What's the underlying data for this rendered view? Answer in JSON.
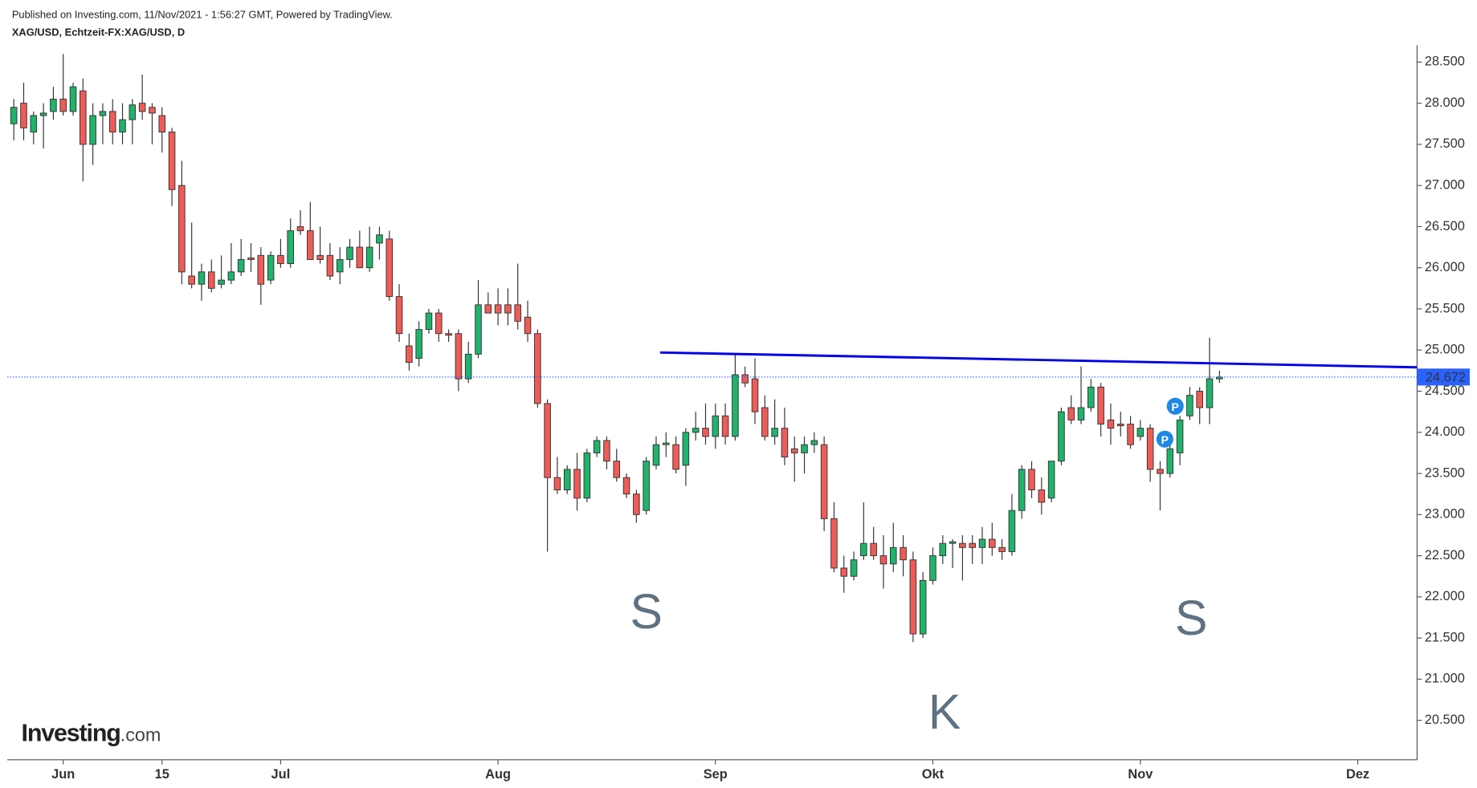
{
  "header": {
    "published": "Published on Investing.com, 11/Nov/2021 - 1:56:27 GMT, Powered by TradingView.",
    "symbol": "XAG/USD, Echtzeit-FX:XAG/USD, D"
  },
  "logo": {
    "name": "Investing",
    "suffix": ".com"
  },
  "chart_data": {
    "type": "candlestick",
    "up_color": "#1fb36b",
    "down_color": "#ef5b57",
    "border_color": "#333333",
    "open": [
      27.75,
      28.0,
      27.65,
      27.85,
      27.9,
      28.05,
      27.9,
      28.15,
      27.5,
      27.85,
      27.9,
      27.65,
      27.8,
      28.0,
      27.95,
      27.85,
      27.65,
      27.0,
      25.9,
      25.8,
      25.95,
      25.8,
      25.85,
      25.95,
      26.12,
      26.15,
      25.85,
      26.15,
      26.05,
      26.5,
      26.45,
      26.15,
      26.15,
      25.95,
      26.1,
      26.25,
      26.0,
      26.3,
      26.35,
      25.65,
      25.05,
      24.9,
      25.25,
      25.45,
      25.2,
      25.2,
      24.65,
      24.95,
      25.55,
      25.55,
      25.55,
      25.55,
      25.4,
      25.2,
      24.35,
      23.45,
      23.3,
      23.55,
      23.2,
      23.75,
      23.9,
      23.65,
      23.45,
      23.25,
      23.05,
      23.6,
      23.85,
      23.85,
      23.6,
      24.0,
      24.05,
      23.95,
      24.2,
      23.95,
      24.7,
      24.65,
      24.3,
      23.95,
      24.05,
      23.8,
      23.75,
      23.85,
      23.85,
      22.95,
      22.35,
      22.25,
      22.5,
      22.65,
      22.5,
      22.4,
      22.6,
      22.45,
      21.55,
      22.2,
      22.5,
      22.65,
      22.65,
      22.65,
      22.6,
      22.7,
      22.6,
      22.55,
      23.05,
      23.55,
      23.3,
      23.2,
      23.65,
      24.3,
      24.15,
      24.3,
      24.55,
      24.15,
      24.1,
      24.1,
      23.95,
      24.05,
      23.55,
      23.5,
      23.75,
      24.2,
      24.5,
      24.3,
      24.65
    ],
    "high": [
      28.05,
      28.25,
      27.9,
      28.0,
      28.2,
      28.6,
      28.25,
      28.3,
      28.0,
      28.0,
      28.05,
      28.0,
      28.05,
      28.35,
      28.0,
      27.95,
      27.7,
      27.3,
      26.55,
      26.05,
      26.1,
      26.15,
      26.3,
      26.35,
      26.3,
      26.25,
      26.2,
      26.35,
      26.6,
      26.7,
      26.8,
      26.5,
      26.3,
      26.25,
      26.35,
      26.45,
      26.5,
      26.5,
      26.45,
      25.8,
      25.2,
      25.35,
      25.5,
      25.5,
      25.25,
      25.25,
      25.1,
      25.85,
      25.7,
      25.75,
      25.75,
      26.05,
      25.6,
      25.25,
      24.4,
      23.7,
      23.6,
      23.75,
      23.8,
      23.95,
      23.95,
      23.8,
      23.5,
      23.3,
      23.7,
      23.95,
      24.0,
      23.95,
      24.05,
      24.25,
      24.35,
      24.35,
      24.35,
      24.95,
      24.8,
      24.9,
      24.45,
      24.4,
      24.3,
      23.95,
      23.95,
      24.0,
      23.95,
      23.15,
      22.5,
      22.55,
      23.15,
      22.85,
      22.75,
      22.9,
      22.75,
      22.55,
      22.3,
      22.6,
      22.75,
      22.7,
      22.75,
      22.75,
      22.85,
      22.9,
      22.7,
      23.25,
      23.6,
      23.65,
      23.45,
      23.65,
      24.3,
      24.45,
      24.8,
      24.65,
      24.6,
      24.35,
      24.25,
      24.2,
      24.15,
      24.1,
      23.65,
      23.95,
      24.2,
      24.55,
      24.55,
      25.15,
      24.75
    ],
    "low": [
      27.55,
      27.55,
      27.5,
      27.45,
      27.8,
      27.85,
      27.85,
      27.05,
      27.25,
      27.5,
      27.5,
      27.5,
      27.5,
      27.8,
      27.5,
      27.4,
      26.75,
      25.8,
      25.75,
      25.6,
      25.7,
      25.75,
      25.8,
      25.9,
      25.95,
      25.55,
      25.8,
      26.0,
      26.0,
      26.4,
      26.1,
      26.05,
      25.85,
      25.8,
      26.0,
      26.0,
      25.95,
      26.1,
      25.6,
      25.1,
      24.75,
      24.8,
      25.2,
      25.1,
      25.1,
      24.5,
      24.6,
      24.9,
      25.45,
      25.3,
      25.3,
      25.25,
      25.1,
      24.3,
      22.55,
      23.25,
      23.25,
      23.05,
      23.15,
      23.7,
      23.55,
      23.4,
      23.2,
      22.9,
      23.0,
      23.55,
      23.7,
      23.5,
      23.35,
      23.9,
      23.85,
      23.8,
      23.85,
      23.9,
      24.55,
      24.1,
      23.9,
      23.85,
      23.6,
      23.4,
      23.5,
      23.75,
      22.8,
      22.3,
      22.05,
      22.2,
      22.45,
      22.45,
      22.1,
      22.3,
      22.25,
      21.45,
      21.5,
      22.15,
      22.4,
      22.35,
      22.2,
      22.4,
      22.4,
      22.5,
      22.45,
      22.5,
      22.95,
      23.2,
      23.0,
      23.15,
      23.6,
      24.1,
      24.1,
      24.25,
      23.95,
      23.85,
      23.95,
      23.8,
      23.9,
      23.4,
      23.05,
      23.45,
      23.6,
      24.15,
      24.1,
      24.1,
      24.6
    ],
    "close": [
      27.95,
      27.7,
      27.85,
      27.88,
      28.05,
      27.9,
      28.2,
      27.5,
      27.85,
      27.9,
      27.65,
      27.8,
      27.98,
      27.9,
      27.88,
      27.65,
      26.95,
      25.95,
      25.8,
      25.95,
      25.75,
      25.85,
      25.95,
      26.1,
      26.1,
      25.8,
      26.15,
      26.05,
      26.45,
      26.45,
      26.1,
      26.1,
      25.9,
      26.1,
      26.25,
      26.0,
      26.25,
      26.4,
      25.65,
      25.2,
      24.85,
      25.25,
      25.45,
      25.2,
      25.18,
      24.65,
      24.95,
      25.55,
      25.45,
      25.45,
      25.45,
      25.35,
      25.2,
      24.35,
      23.45,
      23.3,
      23.55,
      23.2,
      23.75,
      23.9,
      23.65,
      23.45,
      23.25,
      23.0,
      23.65,
      23.85,
      23.87,
      23.55,
      24.0,
      24.05,
      23.95,
      24.2,
      23.95,
      24.7,
      24.6,
      24.25,
      23.95,
      24.05,
      23.7,
      23.75,
      23.85,
      23.9,
      22.95,
      22.35,
      22.25,
      22.45,
      22.65,
      22.5,
      22.4,
      22.6,
      22.45,
      21.55,
      22.2,
      22.5,
      22.65,
      22.67,
      22.6,
      22.6,
      22.7,
      22.6,
      22.55,
      23.05,
      23.55,
      23.3,
      23.15,
      23.65,
      24.25,
      24.15,
      24.3,
      24.55,
      24.1,
      24.05,
      24.08,
      23.85,
      24.05,
      23.55,
      23.5,
      23.8,
      24.15,
      24.45,
      24.3,
      24.65,
      24.672
    ],
    "xlim": [
      -0.667,
      142.0
    ],
    "xticks": [
      {
        "value": 5,
        "label": "Jun"
      },
      {
        "value": 15,
        "label": "15"
      },
      {
        "value": 27,
        "label": "Jul"
      },
      {
        "value": 49,
        "label": "Aug"
      },
      {
        "value": 71,
        "label": "Sep"
      },
      {
        "value": 93,
        "label": "Okt"
      },
      {
        "value": 114,
        "label": "Nov"
      },
      {
        "value": 136,
        "label": "Dez"
      }
    ],
    "ylim": [
      20.02,
      28.706
    ],
    "yticks": [
      {
        "value": 20.5,
        "label": "20.500"
      },
      {
        "value": 21,
        "label": "21.000"
      },
      {
        "value": 21.5,
        "label": "21.500"
      },
      {
        "value": 22,
        "label": "22.000"
      },
      {
        "value": 22.5,
        "label": "22.500"
      },
      {
        "value": 23,
        "label": "23.000"
      },
      {
        "value": 23.5,
        "label": "23.500"
      },
      {
        "value": 24,
        "label": "24.000"
      },
      {
        "value": 24.5,
        "label": "24.500"
      },
      {
        "value": 25,
        "label": "25.000"
      },
      {
        "value": 25.5,
        "label": "25.500"
      },
      {
        "value": 26,
        "label": "26.000"
      },
      {
        "value": 26.5,
        "label": "26.500"
      },
      {
        "value": 27,
        "label": "27.000"
      },
      {
        "value": 27.5,
        "label": "27.500"
      },
      {
        "value": 28,
        "label": "28.000"
      },
      {
        "value": 28.5,
        "label": "28.500"
      }
    ],
    "last_price": 24.672,
    "last_price_color": "#2962ff",
    "trend_line": {
      "x": [
        65.4,
        142.0
      ],
      "y": [
        24.97,
        24.79
      ],
      "color": "#0000e6"
    },
    "annotations": [
      "S",
      "K",
      "S"
    ],
    "events": [
      "P",
      "P"
    ]
  }
}
